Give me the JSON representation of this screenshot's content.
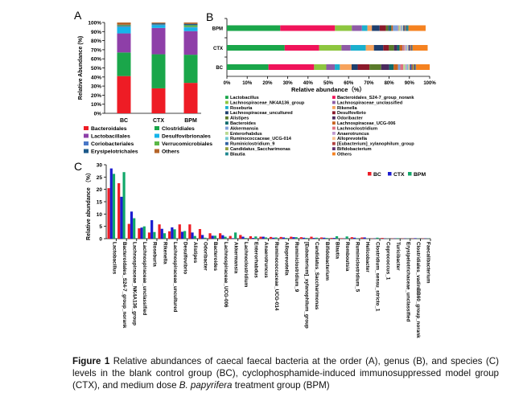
{
  "chart_data": [
    {
      "panel": "A",
      "type": "bar",
      "stacked": true,
      "ylabel": "Relative Abundance (%)",
      "ylim": [
        0,
        100
      ],
      "yticks": [
        "0%",
        "10%",
        "20%",
        "30%",
        "40%",
        "50%",
        "60%",
        "70%",
        "80%",
        "90%",
        "100%"
      ],
      "categories": [
        "BC",
        "CTX",
        "BPM"
      ],
      "series": [
        {
          "name": "Bacteroidales",
          "color": "#ee1c25",
          "values": [
            41,
            27.5,
            33.5
          ]
        },
        {
          "name": "Clostridiales",
          "color": "#1aa64a",
          "values": [
            26,
            37.5,
            31
          ]
        },
        {
          "name": "Lactobacillales",
          "color": "#8e3fa8",
          "values": [
            21,
            29,
            26
          ]
        },
        {
          "name": "Desulfovibrionales",
          "color": "#15b4ea",
          "values": [
            7,
            3,
            4
          ]
        },
        {
          "name": "Coriobacteriales",
          "color": "#4a78c8",
          "values": [
            1,
            0.5,
            0.5
          ]
        },
        {
          "name": "Verrucomicrobiales",
          "color": "#5bb847",
          "values": [
            1,
            0.2,
            2
          ]
        },
        {
          "name": "Erysipelotrichales",
          "color": "#1d5a8a",
          "values": [
            0.5,
            1.3,
            1.5
          ]
        },
        {
          "name": "Others",
          "color": "#b5652a",
          "values": [
            2.5,
            1,
            1.5
          ]
        }
      ]
    },
    {
      "panel": "B",
      "type": "bar",
      "stacked": true,
      "orientation": "horizontal",
      "xlabel": "Relative abundance（%）",
      "xlim": [
        0,
        100
      ],
      "xticks": [
        "0%",
        "10%",
        "20%",
        "30%",
        "40%",
        "50%",
        "60%",
        "70%",
        "80%",
        "90%",
        "100%"
      ],
      "categories": [
        "BPM",
        "CTX",
        "BC"
      ],
      "series": [
        {
          "name": "Lactobacillus",
          "color": "#1aa64a",
          "values": [
            26.3,
            28.5,
            20.5
          ]
        },
        {
          "name": "Bacteroidales_S24-7_group_norank",
          "color": "#f0145a",
          "values": [
            27,
            17,
            22.5
          ]
        },
        {
          "name": "Lachnospiraceae_NK4A136_group",
          "color": "#8dc63f",
          "values": [
            8.3,
            11,
            6
          ]
        },
        {
          "name": "Lachnospiraceae_unclassified",
          "color": "#8e5ba6",
          "values": [
            5,
            4.5,
            4.2
          ]
        },
        {
          "name": "Roseburia",
          "color": "#1bb0ce",
          "values": [
            2.7,
            7.5,
            2.5
          ]
        },
        {
          "name": "Rikenella",
          "color": "#f7a35c",
          "values": [
            2.2,
            4,
            5.8
          ]
        },
        {
          "name": "Lachnospiraceae_uncultured",
          "color": "#1f3f6e",
          "values": [
            3.8,
            4.6,
            3
          ]
        },
        {
          "name": "Desulfovibrio",
          "color": "#8b1a2b",
          "values": [
            3.1,
            2.8,
            5.8
          ]
        },
        {
          "name": "Alistipes",
          "color": "#5a7a2a",
          "values": [
            1.1,
            2.5,
            5.8
          ]
        },
        {
          "name": "Odoribacter",
          "color": "#4a2a5e",
          "values": [
            0.4,
            1.5,
            3.9
          ]
        },
        {
          "name": "Bacteroides",
          "color": "#0e6b6b",
          "values": [
            1.2,
            1.2,
            2.2
          ]
        },
        {
          "name": "Lachnospiraceae_UCG-006",
          "color": "#c8641e",
          "values": [
            0.8,
            1.4,
            2.2
          ]
        },
        {
          "name": "Akkermansia",
          "color": "#7f9fd8",
          "values": [
            2.5,
            0.2,
            1.1
          ]
        },
        {
          "name": "Lachnoclostridium",
          "color": "#e07080",
          "values": [
            0.3,
            0.8,
            1.5
          ]
        },
        {
          "name": "Enterorhabdus",
          "color": "#b8d890",
          "values": [
            0.9,
            0.3,
            1.0
          ]
        },
        {
          "name": "Anaerotruncus",
          "color": "#c09ad0",
          "values": [
            0.5,
            0.8,
            0.8
          ]
        },
        {
          "name": "Ruminococcaceae_UCG-014",
          "color": "#70c8d0",
          "values": [
            0.5,
            0.4,
            0.7
          ]
        },
        {
          "name": "Alloprevotella",
          "color": "#f8c090",
          "values": [
            0.3,
            0.5,
            0.7
          ]
        },
        {
          "name": "Ruminiclostridium_9",
          "color": "#3060a0",
          "values": [
            0.6,
            0.6,
            0.8
          ]
        },
        {
          "name": "[Eubacterium]_xylanophilum_group",
          "color": "#b04040",
          "values": [
            0.3,
            0.4,
            0.6
          ]
        },
        {
          "name": "Candidatus_Saccharimonas",
          "color": "#90a040",
          "values": [
            0.4,
            0.3,
            0.8
          ]
        },
        {
          "name": "Bifidobacterium",
          "color": "#603070",
          "values": [
            0.3,
            0.4,
            0.5
          ]
        },
        {
          "name": "Blautia",
          "color": "#208890",
          "values": [
            1.0,
            0.3,
            0.3
          ]
        },
        {
          "name": "Others",
          "color": "#f58220",
          "values": [
            8.5,
            7.5,
            6.8
          ]
        }
      ]
    },
    {
      "panel": "C",
      "type": "bar",
      "grouped": true,
      "ylabel": "Relative abundance （%）",
      "ylim": [
        0,
        30
      ],
      "yticks": [
        "0",
        "5",
        "10",
        "15",
        "20",
        "25",
        "30"
      ],
      "legend_position": "top-right",
      "categories": [
        "Lactobacillus",
        "Bacteroidales_S24-7_group_norank",
        "Lachnospiraceae_NK4A136_group",
        "Lachnospiraceae_unclassified",
        "Roseburia",
        "Rikenella",
        "Lachnospiraceae_uncultured",
        "Desulfovibrio",
        "Alistipes",
        "Odoribacter",
        "Bacteroides",
        "Lachnospiraceae_UCG-006",
        "Akkermansia",
        "Lachnoclostridium",
        "Enterorhabdus",
        "Anaerotruncus",
        "Ruminococcaceae_UCG-014",
        "Alloprevotella",
        "Ruminiclostridium_9",
        "[Eubacterium]_xylanophilum_group",
        "Candidatus_Saccharimonas",
        "Bifidobacterium",
        "Blautia",
        "Romboutsia",
        "Ruminiclostridium_5",
        "Helicobacter",
        "Clostridium_sensu_stricto_1",
        "Coprococcus_1",
        "Turicibacter",
        "Erysipelotrichaceae_unclassified",
        "Clostridiales_vadinBB60_group_norank",
        "Faecalibacterium"
      ],
      "series": [
        {
          "name": "BC",
          "color": "#ee1c25",
          "values": [
            20.5,
            22.5,
            6,
            4.2,
            2.5,
            5.8,
            3,
            5.8,
            5.8,
            3.9,
            2.2,
            2.2,
            1.1,
            1.5,
            1.0,
            0.8,
            0.7,
            0.7,
            0.8,
            0.6,
            0.8,
            0.5,
            0.3,
            0.2,
            0.6,
            0.5,
            0.1,
            0.3,
            0.1,
            0.1,
            0.1,
            0.1
          ]
        },
        {
          "name": "CTX",
          "color": "#1c1cd0",
          "values": [
            28.5,
            17,
            11,
            4.5,
            7.5,
            4,
            4.6,
            2.8,
            2.5,
            1.5,
            1.2,
            1.4,
            0.2,
            0.8,
            0.3,
            0.8,
            0.4,
            0.5,
            0.6,
            0.4,
            0.3,
            0.4,
            0.3,
            0.1,
            0.4,
            0.5,
            0.1,
            0.1,
            0.1,
            0.1,
            0.2,
            0.1
          ]
        },
        {
          "name": "BPM",
          "color": "#12a86a",
          "values": [
            26.3,
            27,
            8.3,
            5,
            2.7,
            2.2,
            3.8,
            3.1,
            1.1,
            0.4,
            1.2,
            0.8,
            2.5,
            0.3,
            0.9,
            0.5,
            0.5,
            0.3,
            0.6,
            0.3,
            0.4,
            0.3,
            1.0,
            0.9,
            0.2,
            0.1,
            0.4,
            0.1,
            0.2,
            0.1,
            0.1,
            0.1
          ]
        }
      ]
    }
  ],
  "panel_labels": [
    "A",
    "B",
    "C"
  ],
  "caption": {
    "label": "Figure 1",
    "text_before": " Relative abundances of caecal faecal bacteria at the order (A), genus (B), and species (C) levels in the blank control group (BC), cyclophosphamide-induced immunosuppressed model group (CTX), and medium dose ",
    "italic": "B. papyrifera",
    "text_after": " treatment group (BPM)"
  }
}
